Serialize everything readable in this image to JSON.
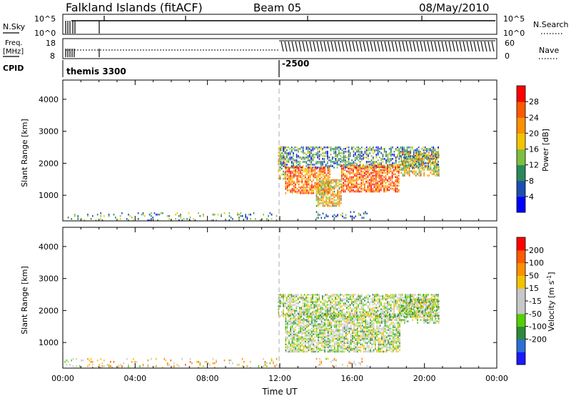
{
  "header": {
    "title": "Falkland Islands (fitACF)",
    "beam": "Beam 05",
    "date": "08/May/2010"
  },
  "status_panels": {
    "nsky": {
      "label": "N.Sky",
      "tick_top": "10^5",
      "tick_bottom": "10^0"
    },
    "nsearch": {
      "label": "N.Search",
      "tick_top": "10^5",
      "tick_bottom": "10^0"
    },
    "freq": {
      "label_line1": "Freq.",
      "label_line2": "[MHz]",
      "tick_top": "18",
      "tick_bottom": "8"
    },
    "nave": {
      "label": "Nave",
      "tick_top": "60",
      "tick_bottom": "0"
    },
    "cpid": {
      "label": "CPID",
      "segments": [
        "themis 3300",
        "-2500"
      ],
      "segment_start_hours": [
        0,
        12
      ]
    }
  },
  "colors": {
    "power_scale": [
      "#0000ff",
      "#1d4fb0",
      "#2a8a5a",
      "#7fbf3f",
      "#f2c400",
      "#ff9000",
      "#ff5a00",
      "#ff0000"
    ],
    "velocity_scale": [
      "#1a1aff",
      "#2d6fd6",
      "#2f8a3a",
      "#55d000",
      "#c8c8c8",
      "#c8c8c8",
      "#f2c400",
      "#ff9000",
      "#ff5a00",
      "#ff0000"
    ]
  },
  "chart_data": [
    {
      "type": "heatmap",
      "name": "power",
      "xlabel": "",
      "ylabel": "Slant Range [km]",
      "xlim": [
        0,
        24
      ],
      "ylim": [
        200,
        4600
      ],
      "yticks": [
        "1000",
        "2000",
        "3000",
        "4000"
      ],
      "colorbar": {
        "label": "Power [dB]",
        "ticks": [
          "4",
          "8",
          "12",
          "16",
          "20",
          "24",
          "28"
        ],
        "range": [
          0,
          32
        ]
      },
      "regions": [
        {
          "t0": 0.0,
          "t1": 11.8,
          "r0": 200,
          "r1": 450,
          "level": 0.35,
          "density": 0.16
        },
        {
          "t0": 11.9,
          "t1": 12.3,
          "r0": 1500,
          "r1": 2500,
          "level": 0.55,
          "density": 0.5
        },
        {
          "t0": 12.0,
          "t1": 20.8,
          "r0": 1850,
          "r1": 2500,
          "level": 0.3,
          "density": 0.55
        },
        {
          "t0": 12.3,
          "t1": 14.8,
          "r0": 1050,
          "r1": 1900,
          "level": 0.75,
          "density": 0.7
        },
        {
          "t0": 14.0,
          "t1": 15.4,
          "r0": 650,
          "r1": 1500,
          "level": 0.6,
          "density": 0.7
        },
        {
          "t0": 15.4,
          "t1": 18.6,
          "r0": 1100,
          "r1": 1950,
          "level": 0.78,
          "density": 0.7
        },
        {
          "t0": 18.6,
          "t1": 20.8,
          "r0": 1600,
          "r1": 2350,
          "level": 0.55,
          "density": 0.55
        },
        {
          "t0": 14.0,
          "t1": 16.8,
          "r0": 280,
          "r1": 480,
          "level": 0.3,
          "density": 0.2
        }
      ]
    },
    {
      "type": "heatmap",
      "name": "velocity",
      "xlabel": "Time UT",
      "ylabel": "Slant Range [km]",
      "xlim": [
        0,
        24
      ],
      "ylim": [
        200,
        4600
      ],
      "xticks": [
        "00:00",
        "04:00",
        "08:00",
        "12:00",
        "16:00",
        "20:00",
        "00:00"
      ],
      "yticks": [
        "1000",
        "2000",
        "3000",
        "4000"
      ],
      "colorbar": {
        "label": "Velocity [m s^-1]",
        "ticks": [
          "200",
          "100",
          "50",
          "15",
          "-15",
          "-50",
          "-100",
          "-200"
        ]
      },
      "regions": [
        {
          "t0": 0.0,
          "t1": 11.8,
          "r0": 200,
          "r1": 480,
          "level": 0.6,
          "density": 0.16
        },
        {
          "t0": 11.9,
          "t1": 20.8,
          "r0": 1800,
          "r1": 2500,
          "level": 0.45,
          "density": 0.6
        },
        {
          "t0": 12.3,
          "t1": 18.6,
          "r0": 700,
          "r1": 1900,
          "level": 0.45,
          "density": 0.7
        },
        {
          "t0": 18.6,
          "t1": 20.8,
          "r0": 1600,
          "r1": 2350,
          "level": 0.45,
          "density": 0.55
        },
        {
          "t0": 14.0,
          "t1": 16.8,
          "r0": 250,
          "r1": 480,
          "level": 0.62,
          "density": 0.2
        }
      ]
    }
  ]
}
